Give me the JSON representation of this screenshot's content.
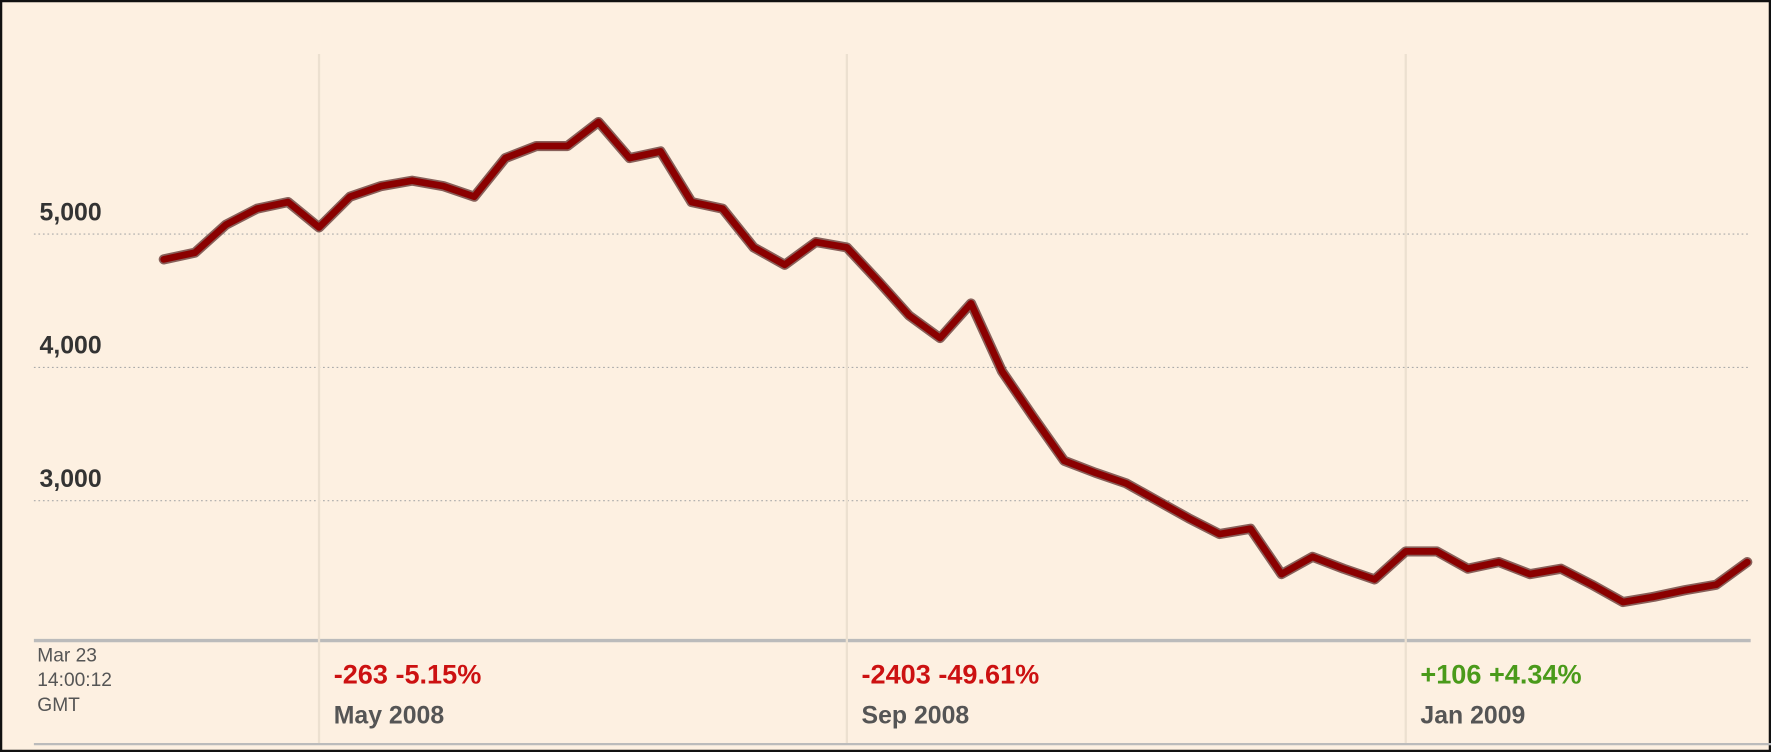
{
  "chart_data": {
    "type": "line",
    "timestamp": [
      "Mar 23",
      "14:00:12",
      "GMT"
    ],
    "categories": [
      null,
      null,
      null,
      null,
      null,
      "May 2008",
      null,
      null,
      null,
      null,
      null,
      null,
      null,
      null,
      null,
      null,
      null,
      null,
      null,
      null,
      null,
      null,
      "Sep 2008",
      null,
      null,
      null,
      null,
      null,
      null,
      null,
      null,
      null,
      null,
      null,
      null,
      null,
      null,
      null,
      null,
      null,
      "Jan 2009",
      null,
      null,
      null,
      null,
      null,
      null,
      null,
      null,
      null,
      null,
      null
    ],
    "period_changes": [
      {
        "category": 5,
        "text": "-263 -5.15%",
        "color": "#cc1111"
      },
      {
        "category": 22,
        "text": "-2403 -49.61%",
        "color": "#cc1111"
      },
      {
        "category": 40,
        "text": "+106 +4.34%",
        "color": "#4a9a1a"
      }
    ],
    "series": [
      {
        "color": "#8b0000",
        "values": [
          4810,
          4860,
          5070,
          5190,
          5240,
          5050,
          5280,
          5360,
          5400,
          5360,
          5280,
          5570,
          5660,
          5660,
          5840,
          5570,
          5620,
          5240,
          5190,
          4900,
          4770,
          4940,
          4900,
          4650,
          4390,
          4220,
          4480,
          3970,
          3630,
          3300,
          3210,
          3130,
          3000,
          2870,
          2750,
          2790,
          2450,
          2580,
          2490,
          2410,
          2620,
          2620,
          2490,
          2540,
          2450,
          2490,
          2370,
          2240,
          2280,
          2330,
          2370,
          2540
        ]
      }
    ],
    "ylim": [
      1960,
      6350
    ],
    "yticks": [
      {
        "value": 3000,
        "label": "3,000"
      },
      {
        "value": 4000,
        "label": "4,000"
      },
      {
        "value": 5000,
        "label": "5,000"
      }
    ],
    "grid": true
  }
}
